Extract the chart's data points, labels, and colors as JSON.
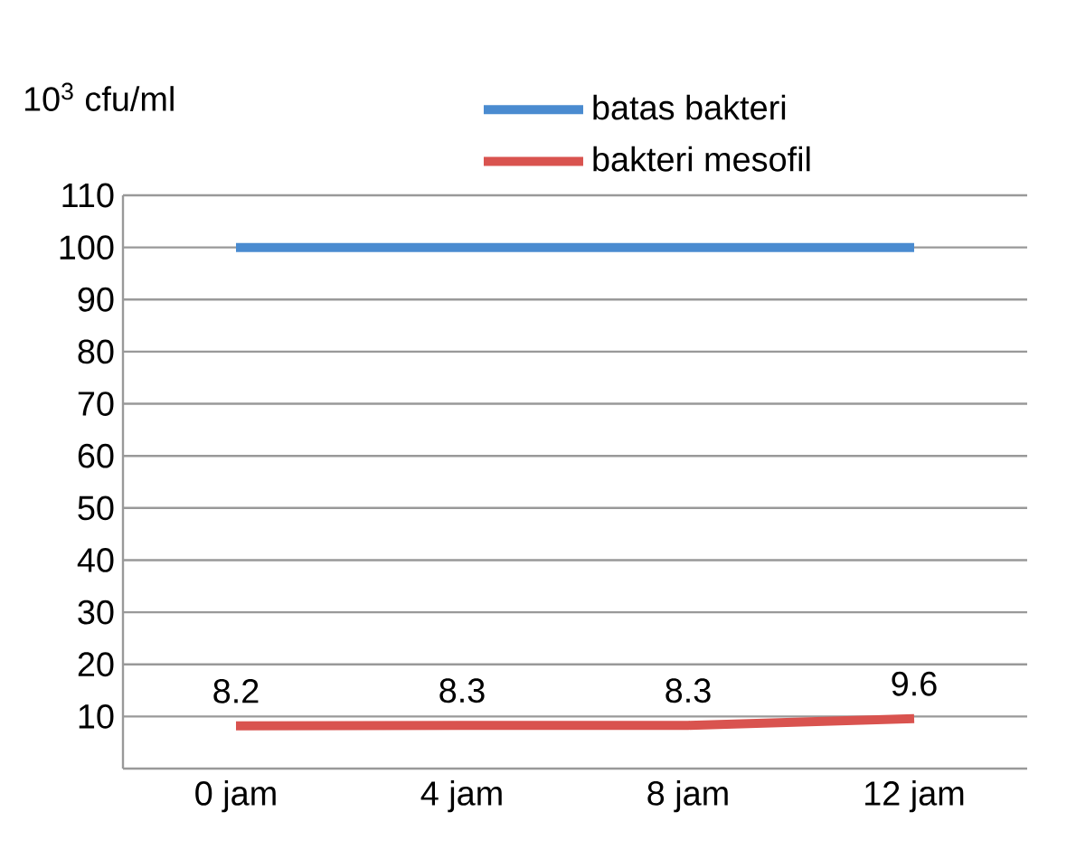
{
  "chart_data": {
    "type": "line",
    "ylabel": "10$^{3}$ cfu/ml",
    "categories": [
      "0 jam",
      "4 jam",
      "8 jam",
      "12 jam"
    ],
    "series": [
      {
        "name": "batas bakteri",
        "color": "#4a8bd0",
        "values": [
          100,
          100,
          100,
          100
        ]
      },
      {
        "name": "bakteri mesofil",
        "color": "#d9534f",
        "values": [
          8.2,
          8.3,
          8.3,
          9.6
        ],
        "data_labels": true
      }
    ],
    "ylim": [
      0,
      110
    ],
    "yticks": [
      10,
      20,
      30,
      40,
      50,
      60,
      70,
      80,
      90,
      100,
      110
    ],
    "grid": "y",
    "legend": "top",
    "marker": "none",
    "line_style": "solid"
  }
}
